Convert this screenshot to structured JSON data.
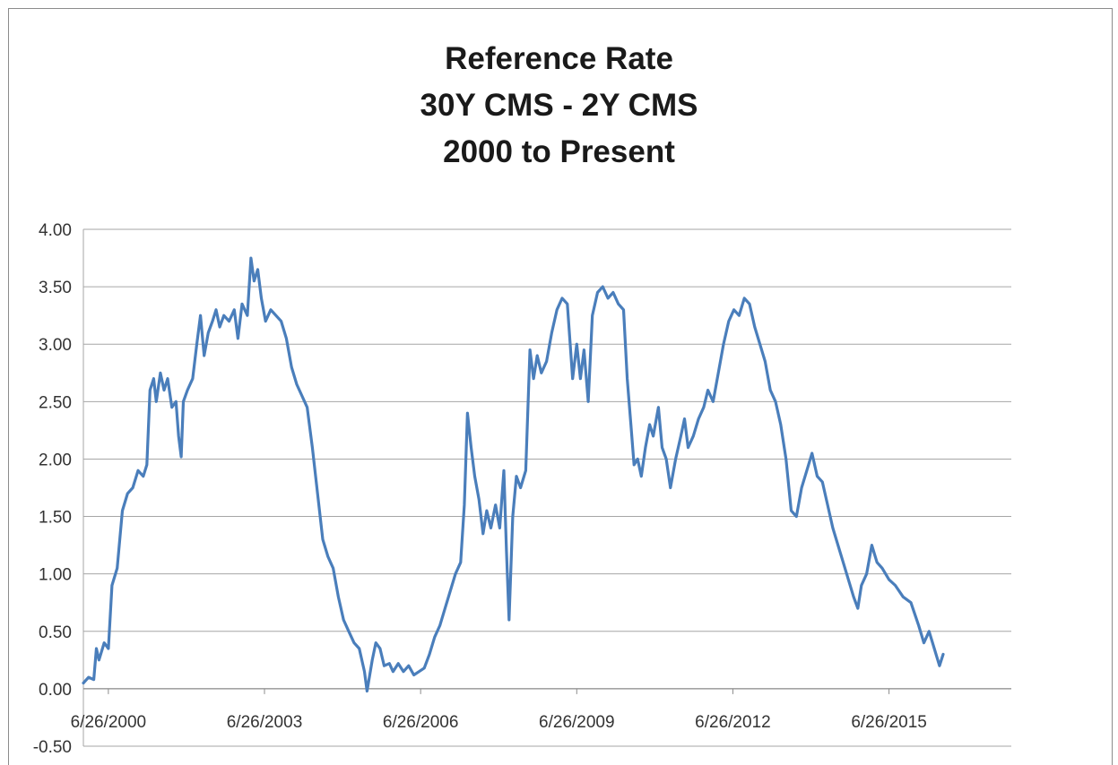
{
  "chart_data": {
    "type": "line",
    "title": [
      "Reference Rate",
      "30Y CMS - 2Y CMS",
      "2000 to Present"
    ],
    "xlabel": "",
    "ylabel": "",
    "ylim": [
      -0.5,
      4.0
    ],
    "yticks": [
      "4.00",
      "3.50",
      "3.00",
      "2.50",
      "2.00",
      "1.50",
      "1.00",
      "0.50",
      "0.00",
      "-0.50"
    ],
    "ytick_values": [
      4.0,
      3.5,
      3.0,
      2.5,
      2.0,
      1.5,
      1.0,
      0.5,
      0.0,
      -0.5
    ],
    "xticks": [
      "6/26/2000",
      "6/26/2003",
      "6/26/2006",
      "6/26/2009",
      "6/26/2012",
      "6/26/2015"
    ],
    "xtick_years": [
      2000.48,
      2003.48,
      2006.48,
      2009.48,
      2012.48,
      2015.48
    ],
    "xlim_years": [
      2000.0,
      2017.83
    ],
    "grid": true,
    "legend": "none",
    "line_color": "#4a7ebb",
    "series": [
      {
        "values": [
          [
            2000.0,
            0.05
          ],
          [
            2000.1,
            0.1
          ],
          [
            2000.2,
            0.08
          ],
          [
            2000.25,
            0.35
          ],
          [
            2000.3,
            0.25
          ],
          [
            2000.4,
            0.4
          ],
          [
            2000.48,
            0.35
          ],
          [
            2000.55,
            0.9
          ],
          [
            2000.65,
            1.05
          ],
          [
            2000.75,
            1.55
          ],
          [
            2000.85,
            1.7
          ],
          [
            2000.95,
            1.75
          ],
          [
            2001.05,
            1.9
          ],
          [
            2001.15,
            1.85
          ],
          [
            2001.22,
            1.95
          ],
          [
            2001.28,
            2.6
          ],
          [
            2001.35,
            2.7
          ],
          [
            2001.4,
            2.5
          ],
          [
            2001.48,
            2.75
          ],
          [
            2001.55,
            2.6
          ],
          [
            2001.62,
            2.7
          ],
          [
            2001.7,
            2.45
          ],
          [
            2001.78,
            2.5
          ],
          [
            2001.83,
            2.2
          ],
          [
            2001.88,
            2.02
          ],
          [
            2001.92,
            2.5
          ],
          [
            2002.0,
            2.6
          ],
          [
            2002.1,
            2.7
          ],
          [
            2002.18,
            3.0
          ],
          [
            2002.25,
            3.25
          ],
          [
            2002.32,
            2.9
          ],
          [
            2002.4,
            3.1
          ],
          [
            2002.48,
            3.2
          ],
          [
            2002.55,
            3.3
          ],
          [
            2002.62,
            3.15
          ],
          [
            2002.7,
            3.25
          ],
          [
            2002.8,
            3.2
          ],
          [
            2002.9,
            3.3
          ],
          [
            2002.97,
            3.05
          ],
          [
            2003.05,
            3.35
          ],
          [
            2003.15,
            3.25
          ],
          [
            2003.22,
            3.75
          ],
          [
            2003.28,
            3.55
          ],
          [
            2003.35,
            3.65
          ],
          [
            2003.42,
            3.4
          ],
          [
            2003.5,
            3.2
          ],
          [
            2003.6,
            3.3
          ],
          [
            2003.7,
            3.25
          ],
          [
            2003.8,
            3.2
          ],
          [
            2003.9,
            3.05
          ],
          [
            2004.0,
            2.8
          ],
          [
            2004.1,
            2.65
          ],
          [
            2004.2,
            2.55
          ],
          [
            2004.3,
            2.45
          ],
          [
            2004.4,
            2.1
          ],
          [
            2004.5,
            1.7
          ],
          [
            2004.6,
            1.3
          ],
          [
            2004.7,
            1.15
          ],
          [
            2004.8,
            1.05
          ],
          [
            2004.9,
            0.8
          ],
          [
            2005.0,
            0.6
          ],
          [
            2005.1,
            0.5
          ],
          [
            2005.2,
            0.4
          ],
          [
            2005.3,
            0.35
          ],
          [
            2005.4,
            0.15
          ],
          [
            2005.45,
            -0.02
          ],
          [
            2005.55,
            0.25
          ],
          [
            2005.62,
            0.4
          ],
          [
            2005.7,
            0.35
          ],
          [
            2005.78,
            0.2
          ],
          [
            2005.88,
            0.22
          ],
          [
            2005.95,
            0.15
          ],
          [
            2006.05,
            0.22
          ],
          [
            2006.15,
            0.15
          ],
          [
            2006.25,
            0.2
          ],
          [
            2006.35,
            0.12
          ],
          [
            2006.45,
            0.15
          ],
          [
            2006.55,
            0.18
          ],
          [
            2006.65,
            0.3
          ],
          [
            2006.75,
            0.45
          ],
          [
            2006.85,
            0.55
          ],
          [
            2006.95,
            0.7
          ],
          [
            2007.05,
            0.85
          ],
          [
            2007.15,
            1.0
          ],
          [
            2007.25,
            1.1
          ],
          [
            2007.32,
            1.6
          ],
          [
            2007.38,
            2.4
          ],
          [
            2007.45,
            2.1
          ],
          [
            2007.52,
            1.85
          ],
          [
            2007.6,
            1.65
          ],
          [
            2007.68,
            1.35
          ],
          [
            2007.75,
            1.55
          ],
          [
            2007.83,
            1.4
          ],
          [
            2007.92,
            1.6
          ],
          [
            2008.0,
            1.4
          ],
          [
            2008.08,
            1.9
          ],
          [
            2008.13,
            1.2
          ],
          [
            2008.18,
            0.6
          ],
          [
            2008.25,
            1.5
          ],
          [
            2008.32,
            1.85
          ],
          [
            2008.4,
            1.75
          ],
          [
            2008.5,
            1.9
          ],
          [
            2008.58,
            2.95
          ],
          [
            2008.65,
            2.7
          ],
          [
            2008.72,
            2.9
          ],
          [
            2008.8,
            2.75
          ],
          [
            2008.9,
            2.85
          ],
          [
            2009.0,
            3.1
          ],
          [
            2009.1,
            3.3
          ],
          [
            2009.2,
            3.4
          ],
          [
            2009.3,
            3.35
          ],
          [
            2009.4,
            2.7
          ],
          [
            2009.48,
            3.0
          ],
          [
            2009.55,
            2.7
          ],
          [
            2009.62,
            2.95
          ],
          [
            2009.7,
            2.5
          ],
          [
            2009.78,
            3.25
          ],
          [
            2009.88,
            3.45
          ],
          [
            2009.98,
            3.5
          ],
          [
            2010.08,
            3.4
          ],
          [
            2010.18,
            3.45
          ],
          [
            2010.28,
            3.35
          ],
          [
            2010.38,
            3.3
          ],
          [
            2010.45,
            2.7
          ],
          [
            2010.52,
            2.3
          ],
          [
            2010.58,
            1.95
          ],
          [
            2010.65,
            2.0
          ],
          [
            2010.72,
            1.85
          ],
          [
            2010.8,
            2.1
          ],
          [
            2010.88,
            2.3
          ],
          [
            2010.95,
            2.2
          ],
          [
            2011.05,
            2.45
          ],
          [
            2011.12,
            2.1
          ],
          [
            2011.2,
            2.0
          ],
          [
            2011.28,
            1.75
          ],
          [
            2011.38,
            2.0
          ],
          [
            2011.48,
            2.2
          ],
          [
            2011.55,
            2.35
          ],
          [
            2011.62,
            2.1
          ],
          [
            2011.72,
            2.2
          ],
          [
            2011.82,
            2.35
          ],
          [
            2011.92,
            2.45
          ],
          [
            2012.0,
            2.6
          ],
          [
            2012.1,
            2.5
          ],
          [
            2012.2,
            2.75
          ],
          [
            2012.3,
            3.0
          ],
          [
            2012.4,
            3.2
          ],
          [
            2012.5,
            3.3
          ],
          [
            2012.6,
            3.25
          ],
          [
            2012.7,
            3.4
          ],
          [
            2012.8,
            3.35
          ],
          [
            2012.9,
            3.15
          ],
          [
            2013.0,
            3.0
          ],
          [
            2013.1,
            2.85
          ],
          [
            2013.2,
            2.6
          ],
          [
            2013.3,
            2.5
          ],
          [
            2013.4,
            2.3
          ],
          [
            2013.5,
            2.0
          ],
          [
            2013.6,
            1.55
          ],
          [
            2013.7,
            1.5
          ],
          [
            2013.8,
            1.75
          ],
          [
            2013.9,
            1.9
          ],
          [
            2014.0,
            2.05
          ],
          [
            2014.1,
            1.85
          ],
          [
            2014.2,
            1.8
          ],
          [
            2014.3,
            1.6
          ],
          [
            2014.4,
            1.4
          ],
          [
            2014.5,
            1.25
          ],
          [
            2014.6,
            1.1
          ],
          [
            2014.7,
            0.95
          ],
          [
            2014.8,
            0.8
          ],
          [
            2014.88,
            0.7
          ],
          [
            2014.95,
            0.9
          ],
          [
            2015.05,
            1.0
          ],
          [
            2015.15,
            1.25
          ],
          [
            2015.25,
            1.1
          ],
          [
            2015.35,
            1.05
          ],
          [
            2015.48,
            0.95
          ],
          [
            2015.6,
            0.9
          ],
          [
            2015.75,
            0.8
          ],
          [
            2015.9,
            0.75
          ],
          [
            2016.05,
            0.55
          ],
          [
            2016.15,
            0.4
          ],
          [
            2016.25,
            0.5
          ],
          [
            2016.35,
            0.35
          ],
          [
            2016.45,
            0.2
          ],
          [
            2016.52,
            0.3
          ]
        ]
      }
    ]
  }
}
